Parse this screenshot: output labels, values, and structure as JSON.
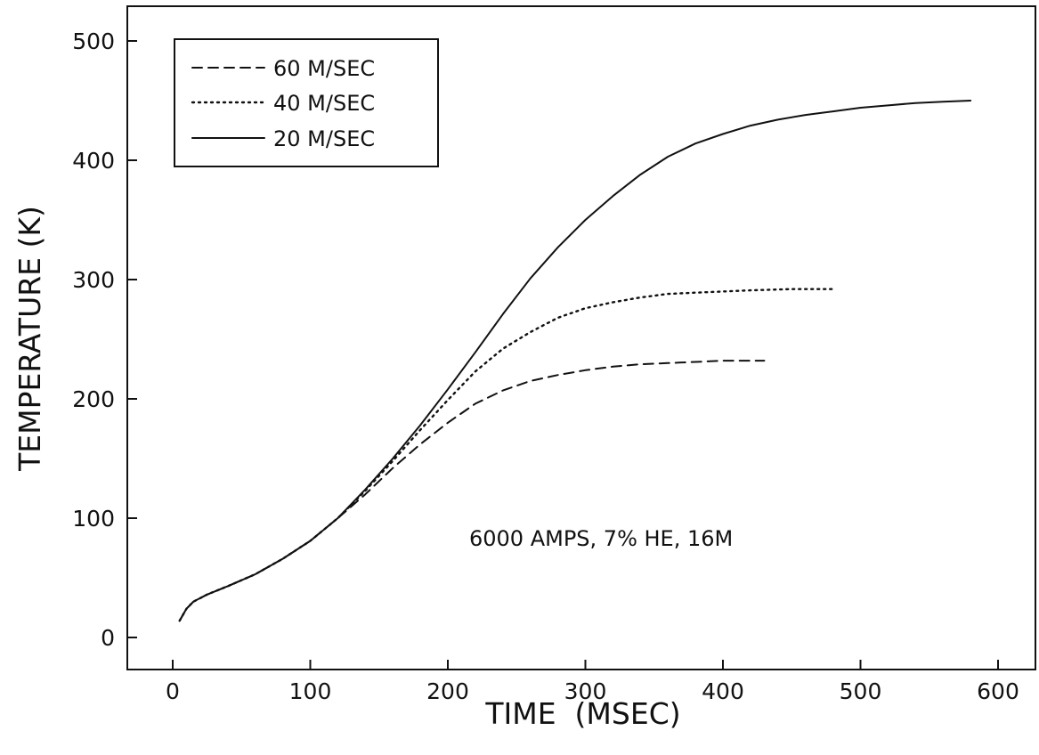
{
  "chart_data": {
    "type": "line",
    "title": "",
    "xlabel": "TIME  (MSEC)",
    "ylabel": "TEMPERATURE (K)",
    "xlim": [
      -30,
      620
    ],
    "ylim": [
      -28,
      530
    ],
    "x_ticks": [
      0,
      100,
      200,
      300,
      400,
      500,
      600
    ],
    "y_ticks": [
      0,
      100,
      200,
      300,
      400,
      500
    ],
    "x_tick_labels": [
      "0",
      "100",
      "200",
      "300",
      "400",
      "500",
      "600"
    ],
    "y_tick_labels": [
      "0",
      "100",
      "200",
      "300",
      "400",
      "500"
    ],
    "grid": false,
    "legend_position": "top-left",
    "annotation": "6000 AMPS, 7% HE, 16M",
    "series": [
      {
        "name": "60 M/SEC",
        "line_style": "dashed",
        "color": "#111111",
        "points": [
          [
            5,
            14
          ],
          [
            10,
            24
          ],
          [
            15,
            30
          ],
          [
            25,
            36
          ],
          [
            40,
            43
          ],
          [
            60,
            53
          ],
          [
            80,
            66
          ],
          [
            100,
            81
          ],
          [
            120,
            100
          ],
          [
            140,
            120
          ],
          [
            160,
            142
          ],
          [
            180,
            162
          ],
          [
            200,
            180
          ],
          [
            220,
            196
          ],
          [
            240,
            207
          ],
          [
            260,
            215
          ],
          [
            280,
            220
          ],
          [
            300,
            224
          ],
          [
            320,
            227
          ],
          [
            340,
            229
          ],
          [
            360,
            230
          ],
          [
            380,
            231
          ],
          [
            400,
            232
          ],
          [
            430,
            232
          ]
        ]
      },
      {
        "name": "40 M/SEC",
        "line_style": "dotted",
        "color": "#111111",
        "points": [
          [
            5,
            14
          ],
          [
            10,
            24
          ],
          [
            15,
            30
          ],
          [
            25,
            36
          ],
          [
            40,
            43
          ],
          [
            60,
            53
          ],
          [
            80,
            66
          ],
          [
            100,
            81
          ],
          [
            120,
            100
          ],
          [
            140,
            123
          ],
          [
            160,
            148
          ],
          [
            180,
            174
          ],
          [
            200,
            199
          ],
          [
            220,
            223
          ],
          [
            240,
            242
          ],
          [
            260,
            256
          ],
          [
            280,
            268
          ],
          [
            300,
            276
          ],
          [
            320,
            281
          ],
          [
            340,
            285
          ],
          [
            360,
            288
          ],
          [
            380,
            289
          ],
          [
            400,
            290
          ],
          [
            420,
            291
          ],
          [
            450,
            292
          ],
          [
            480,
            292
          ]
        ]
      },
      {
        "name": "20 M/SEC",
        "line_style": "solid",
        "color": "#111111",
        "points": [
          [
            5,
            14
          ],
          [
            10,
            24
          ],
          [
            15,
            30
          ],
          [
            25,
            36
          ],
          [
            40,
            43
          ],
          [
            60,
            53
          ],
          [
            80,
            66
          ],
          [
            100,
            81
          ],
          [
            120,
            100
          ],
          [
            140,
            124
          ],
          [
            160,
            150
          ],
          [
            180,
            178
          ],
          [
            200,
            208
          ],
          [
            220,
            239
          ],
          [
            240,
            271
          ],
          [
            260,
            301
          ],
          [
            280,
            327
          ],
          [
            300,
            350
          ],
          [
            320,
            370
          ],
          [
            340,
            388
          ],
          [
            360,
            403
          ],
          [
            380,
            414
          ],
          [
            400,
            422
          ],
          [
            420,
            429
          ],
          [
            440,
            434
          ],
          [
            460,
            438
          ],
          [
            480,
            441
          ],
          [
            500,
            444
          ],
          [
            520,
            446
          ],
          [
            540,
            448
          ],
          [
            560,
            449
          ],
          [
            580,
            450
          ]
        ]
      }
    ]
  }
}
